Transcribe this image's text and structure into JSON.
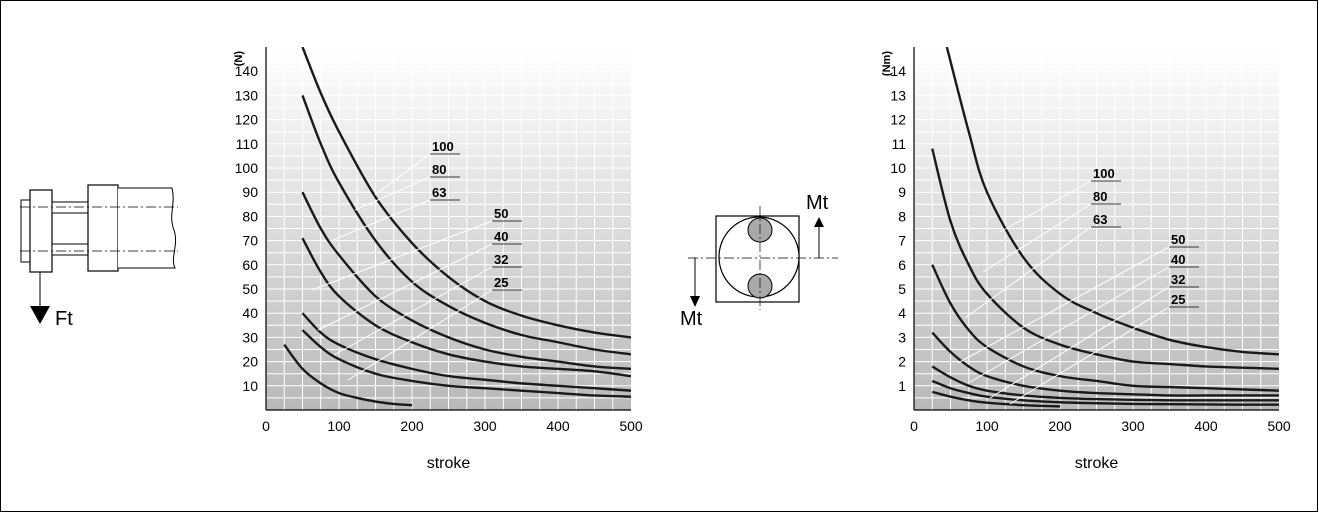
{
  "force_diagram": {
    "load_label": "Ft"
  },
  "torque_diagram": {
    "top_label": "Mt",
    "bottom_label": "Mt"
  },
  "chart_data": [
    {
      "type": "line",
      "ylabel": "(N)",
      "xlabel": "stroke",
      "xlim": [
        0,
        500
      ],
      "ylim": [
        0,
        150
      ],
      "xticks": [
        0,
        100,
        200,
        300,
        400,
        500
      ],
      "yticks": [
        10,
        20,
        30,
        40,
        50,
        60,
        70,
        80,
        90,
        100,
        110,
        120,
        130,
        140
      ],
      "grid": true,
      "series": [
        {
          "name": "100",
          "points": [
            [
              50,
              150
            ],
            [
              75,
              131
            ],
            [
              100,
              115
            ],
            [
              150,
              88
            ],
            [
              200,
              69
            ],
            [
              250,
              55
            ],
            [
              300,
              45
            ],
            [
              350,
              39
            ],
            [
              400,
              35
            ],
            [
              450,
              32
            ],
            [
              500,
              30
            ]
          ]
        },
        {
          "name": "80",
          "points": [
            [
              50,
              130
            ],
            [
              75,
              110
            ],
            [
              100,
              94
            ],
            [
              150,
              70
            ],
            [
              200,
              53
            ],
            [
              250,
              43
            ],
            [
              300,
              36
            ],
            [
              350,
              31
            ],
            [
              400,
              28
            ],
            [
              450,
              25
            ],
            [
              500,
              23
            ]
          ]
        },
        {
          "name": "63",
          "points": [
            [
              50,
              90
            ],
            [
              75,
              75
            ],
            [
              100,
              64
            ],
            [
              150,
              47
            ],
            [
              200,
              37
            ],
            [
              250,
              30
            ],
            [
              300,
              25
            ],
            [
              350,
              22
            ],
            [
              400,
              20
            ],
            [
              450,
              18
            ],
            [
              500,
              17
            ]
          ]
        },
        {
          "name": "50",
          "points": [
            [
              50,
              71
            ],
            [
              75,
              57
            ],
            [
              100,
              47
            ],
            [
              150,
              35
            ],
            [
              200,
              28
            ],
            [
              250,
              23
            ],
            [
              300,
              20
            ],
            [
              350,
              18
            ],
            [
              400,
              17
            ],
            [
              450,
              16
            ],
            [
              500,
              14
            ]
          ]
        },
        {
          "name": "40",
          "points": [
            [
              50,
              40
            ],
            [
              75,
              32
            ],
            [
              100,
              27
            ],
            [
              150,
              21
            ],
            [
              200,
              17
            ],
            [
              250,
              14
            ],
            [
              300,
              12.5
            ],
            [
              350,
              11
            ],
            [
              400,
              10
            ],
            [
              450,
              9
            ],
            [
              500,
              8
            ]
          ]
        },
        {
          "name": "32",
          "points": [
            [
              50,
              33
            ],
            [
              75,
              26
            ],
            [
              100,
              21
            ],
            [
              150,
              15
            ],
            [
              200,
              12
            ],
            [
              250,
              10
            ],
            [
              300,
              9
            ],
            [
              350,
              8
            ],
            [
              400,
              7
            ],
            [
              450,
              6
            ],
            [
              500,
              5.5
            ]
          ]
        },
        {
          "name": "25",
          "points": [
            [
              25,
              27
            ],
            [
              50,
              17
            ],
            [
              75,
              11
            ],
            [
              100,
              7
            ],
            [
              125,
              5
            ],
            [
              150,
              3.5
            ],
            [
              175,
              2.5
            ],
            [
              200,
              2
            ]
          ]
        }
      ],
      "label_order": [
        "100",
        "80",
        "63",
        "50",
        "40",
        "32",
        "25"
      ]
    },
    {
      "type": "line",
      "ylabel": "(Nm)",
      "xlabel": "stroke",
      "xlim": [
        0,
        500
      ],
      "ylim": [
        0,
        15
      ],
      "xticks": [
        0,
        100,
        200,
        300,
        400,
        500
      ],
      "yticks": [
        1,
        2,
        3,
        4,
        5,
        6,
        7,
        8,
        9,
        10,
        11,
        12,
        13,
        14
      ],
      "grid": true,
      "series": [
        {
          "name": "100",
          "points": [
            [
              45,
              15
            ],
            [
              75,
              11.5
            ],
            [
              100,
              9
            ],
            [
              150,
              6.3
            ],
            [
              200,
              4.8
            ],
            [
              250,
              4
            ],
            [
              300,
              3.4
            ],
            [
              350,
              2.9
            ],
            [
              400,
              2.6
            ],
            [
              450,
              2.4
            ],
            [
              500,
              2.3
            ]
          ]
        },
        {
          "name": "80",
          "points": [
            [
              25,
              10.8
            ],
            [
              50,
              7.8
            ],
            [
              75,
              6
            ],
            [
              100,
              4.8
            ],
            [
              150,
              3.4
            ],
            [
              200,
              2.7
            ],
            [
              250,
              2.3
            ],
            [
              300,
              2.0
            ],
            [
              350,
              1.9
            ],
            [
              400,
              1.8
            ],
            [
              450,
              1.75
            ],
            [
              500,
              1.7
            ]
          ]
        },
        {
          "name": "63",
          "points": [
            [
              25,
              6
            ],
            [
              50,
              4.4
            ],
            [
              75,
              3.3
            ],
            [
              100,
              2.6
            ],
            [
              150,
              1.8
            ],
            [
              200,
              1.4
            ],
            [
              250,
              1.2
            ],
            [
              300,
              1.0
            ],
            [
              350,
              0.95
            ],
            [
              400,
              0.9
            ],
            [
              450,
              0.85
            ],
            [
              500,
              0.8
            ]
          ]
        },
        {
          "name": "50",
          "points": [
            [
              25,
              3.2
            ],
            [
              50,
              2.4
            ],
            [
              75,
              1.8
            ],
            [
              100,
              1.4
            ],
            [
              150,
              1.0
            ],
            [
              200,
              0.8
            ],
            [
              250,
              0.7
            ],
            [
              300,
              0.65
            ],
            [
              350,
              0.6
            ],
            [
              400,
              0.6
            ],
            [
              450,
              0.6
            ],
            [
              500,
              0.6
            ]
          ]
        },
        {
          "name": "40",
          "points": [
            [
              25,
              1.8
            ],
            [
              50,
              1.35
            ],
            [
              75,
              1.0
            ],
            [
              100,
              0.8
            ],
            [
              150,
              0.6
            ],
            [
              200,
              0.5
            ],
            [
              250,
              0.45
            ],
            [
              300,
              0.42
            ],
            [
              350,
              0.4
            ],
            [
              400,
              0.4
            ],
            [
              450,
              0.4
            ],
            [
              500,
              0.4
            ]
          ]
        },
        {
          "name": "32",
          "points": [
            [
              25,
              1.2
            ],
            [
              50,
              0.9
            ],
            [
              75,
              0.7
            ],
            [
              100,
              0.55
            ],
            [
              150,
              0.4
            ],
            [
              200,
              0.32
            ],
            [
              250,
              0.28
            ],
            [
              300,
              0.25
            ],
            [
              350,
              0.24
            ],
            [
              400,
              0.23
            ],
            [
              450,
              0.22
            ],
            [
              500,
              0.22
            ]
          ]
        },
        {
          "name": "25",
          "points": [
            [
              25,
              0.75
            ],
            [
              50,
              0.55
            ],
            [
              75,
              0.4
            ],
            [
              100,
              0.3
            ],
            [
              150,
              0.2
            ],
            [
              200,
              0.15
            ]
          ]
        }
      ],
      "label_order": [
        "100",
        "80",
        "63",
        "50",
        "40",
        "32",
        "25"
      ]
    }
  ]
}
